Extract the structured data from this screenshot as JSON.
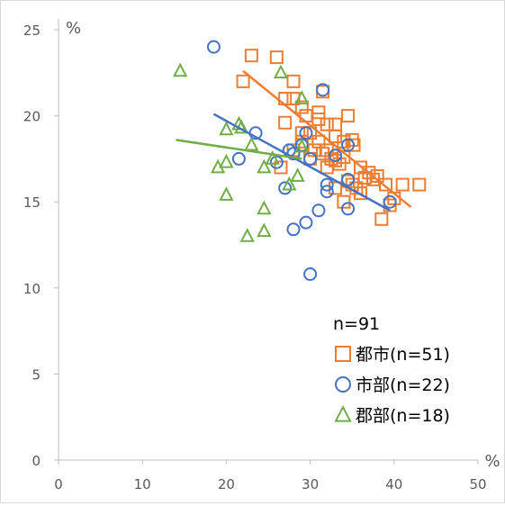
{
  "chart_data": {
    "type": "scatter",
    "x_unit": "%",
    "y_unit": "%",
    "xlim": [
      0,
      50
    ],
    "ylim": [
      0,
      25
    ],
    "x_ticks": [
      0,
      10,
      20,
      30,
      40,
      50
    ],
    "y_ticks": [
      0,
      5,
      10,
      15,
      20,
      25
    ],
    "grid": false,
    "legend_position": "bottom-right",
    "legend_title": "n=91",
    "series": [
      {
        "name": "都市(n=51)",
        "marker": "square",
        "color": "#ED7D31",
        "points": [
          [
            23,
            23.5
          ],
          [
            26,
            23.4
          ],
          [
            22,
            22
          ],
          [
            28,
            22
          ],
          [
            27,
            21
          ],
          [
            28,
            21
          ],
          [
            31.5,
            21.4
          ],
          [
            29,
            20.5
          ],
          [
            29.5,
            20
          ],
          [
            27,
            19.6
          ],
          [
            30,
            19
          ],
          [
            31,
            19.8
          ],
          [
            32,
            19.5
          ],
          [
            33,
            19.5
          ],
          [
            34.5,
            20
          ],
          [
            28,
            18
          ],
          [
            29,
            18.5
          ],
          [
            30.5,
            18
          ],
          [
            31,
            18.5
          ],
          [
            32,
            18
          ],
          [
            33,
            18.8
          ],
          [
            34,
            18.5
          ],
          [
            35,
            18.6
          ],
          [
            35.2,
            18.3
          ],
          [
            31.5,
            17.8
          ],
          [
            32.5,
            17.5
          ],
          [
            33,
            17.4
          ],
          [
            34,
            17.6
          ],
          [
            32,
            17
          ],
          [
            33.5,
            17.2
          ],
          [
            26.5,
            17
          ],
          [
            30,
            17.5
          ],
          [
            36,
            17
          ],
          [
            37,
            16.7
          ],
          [
            38,
            16.5
          ],
          [
            35,
            16
          ],
          [
            36.5,
            16.4
          ],
          [
            34.5,
            16.2
          ],
          [
            35.5,
            15.8
          ],
          [
            33,
            15.8
          ],
          [
            37.5,
            16.3
          ],
          [
            39,
            16
          ],
          [
            40,
            15.2
          ],
          [
            41,
            16
          ],
          [
            43,
            16
          ],
          [
            34,
            15
          ],
          [
            39.5,
            14.8
          ],
          [
            38.5,
            14
          ],
          [
            36,
            15.5
          ],
          [
            29,
            19
          ],
          [
            31,
            20.2
          ]
        ],
        "trend": [
          [
            22,
            22.6
          ],
          [
            42,
            14.7
          ]
        ]
      },
      {
        "name": "市部(n=22)",
        "marker": "circle",
        "color": "#4472C4",
        "points": [
          [
            18.5,
            24
          ],
          [
            31.5,
            21.5
          ],
          [
            29.5,
            19
          ],
          [
            23.5,
            19
          ],
          [
            21.5,
            17.5
          ],
          [
            26,
            17.3
          ],
          [
            27.5,
            18
          ],
          [
            30,
            17.5
          ],
          [
            34.5,
            18.3
          ],
          [
            28,
            17.8
          ],
          [
            32,
            16
          ],
          [
            34.5,
            16.3
          ],
          [
            32,
            15.6
          ],
          [
            27,
            15.8
          ],
          [
            39.5,
            15
          ],
          [
            34.5,
            14.6
          ],
          [
            31,
            14.5
          ],
          [
            29.5,
            13.8
          ],
          [
            28,
            13.4
          ],
          [
            30,
            10.8
          ],
          [
            29,
            18.3
          ],
          [
            33,
            17.7
          ]
        ],
        "trend": [
          [
            18.5,
            20.1
          ],
          [
            39.5,
            14.5
          ]
        ]
      },
      {
        "name": "郡部(n=18)",
        "marker": "triangle",
        "color": "#70AD47",
        "points": [
          [
            14.5,
            22.6
          ],
          [
            26.5,
            22.5
          ],
          [
            29,
            21
          ],
          [
            21.5,
            19.5
          ],
          [
            21.8,
            19.3
          ],
          [
            20,
            19.2
          ],
          [
            23,
            18.3
          ],
          [
            20,
            17.3
          ],
          [
            19,
            17
          ],
          [
            25.5,
            17.5
          ],
          [
            24.5,
            17
          ],
          [
            29,
            18.2
          ],
          [
            28.5,
            16.5
          ],
          [
            27.5,
            16
          ],
          [
            20,
            15.4
          ],
          [
            24.5,
            14.6
          ],
          [
            22.5,
            13
          ],
          [
            24.5,
            13.3
          ]
        ],
        "trend": [
          [
            14,
            18.6
          ],
          [
            29,
            17.5
          ]
        ]
      }
    ]
  }
}
